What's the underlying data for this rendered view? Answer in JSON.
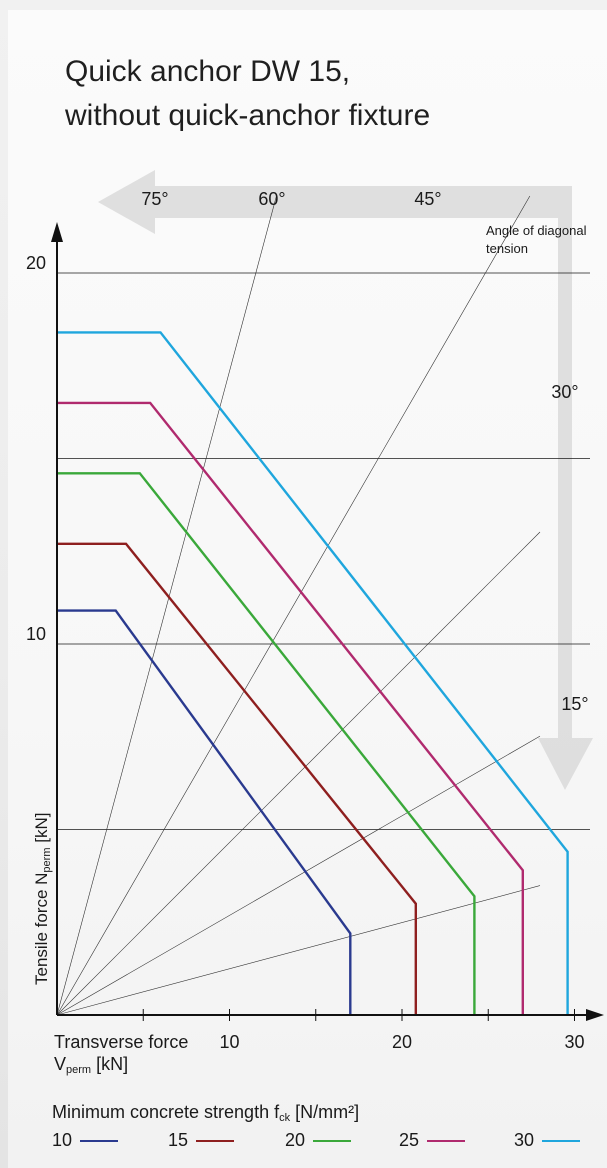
{
  "title_line1": "Quick anchor DW 15,",
  "title_line2": "without quick-anchor fixture",
  "angle_title": "Angle of diagonal tension",
  "y_axis_label_main": "Tensile force N",
  "y_axis_label_sub": "perm",
  "y_axis_label_unit": " [kN]",
  "x_axis_label_line1": "Transverse force",
  "x_axis_label_main": "V",
  "x_axis_label_sub": "perm",
  "x_axis_label_unit": " [kN]",
  "legend_title_main": "Minimum concrete strength f",
  "legend_title_sub": "ck",
  "legend_title_unit": " [N/mm²]",
  "legend": [
    {
      "label": "10",
      "color": "#2a3a8f"
    },
    {
      "label": "15",
      "color": "#8e1f1f"
    },
    {
      "label": "20",
      "color": "#3aa83a"
    },
    {
      "label": "25",
      "color": "#b02a6e"
    },
    {
      "label": "30",
      "color": "#1fa6dd"
    }
  ],
  "chart_data": {
    "type": "line",
    "title": "Quick anchor DW 15, without quick-anchor fixture",
    "xlabel": "Transverse force Vperm [kN]",
    "ylabel": "Tensile force Nperm [kN]",
    "xlim": [
      0,
      30
    ],
    "ylim": [
      0,
      20
    ],
    "x_ticks": [
      10,
      20,
      30
    ],
    "y_ticks": [
      10,
      20
    ],
    "gridlines_y": [
      5,
      10,
      15,
      20
    ],
    "angles": [
      {
        "label": "75°",
        "deg": 75
      },
      {
        "label": "60°",
        "deg": 60
      },
      {
        "label": "45°",
        "deg": 45
      },
      {
        "label": "30°",
        "deg": 30
      },
      {
        "label": "15°",
        "deg": 15
      }
    ],
    "series": [
      {
        "name": "10",
        "color": "#2a3a8f",
        "points": [
          [
            0,
            10.9
          ],
          [
            3.4,
            10.9
          ],
          [
            17,
            2.2
          ],
          [
            17,
            0
          ]
        ]
      },
      {
        "name": "15",
        "color": "#8e1f1f",
        "points": [
          [
            0,
            12.7
          ],
          [
            4,
            12.7
          ],
          [
            20.8,
            3.0
          ],
          [
            20.8,
            0
          ]
        ]
      },
      {
        "name": "20",
        "color": "#3aa83a",
        "points": [
          [
            0,
            14.6
          ],
          [
            4.8,
            14.6
          ],
          [
            24.2,
            3.2
          ],
          [
            24.2,
            0
          ]
        ]
      },
      {
        "name": "25",
        "color": "#b02a6e",
        "points": [
          [
            0,
            16.5
          ],
          [
            5.4,
            16.5
          ],
          [
            27,
            3.9
          ],
          [
            27,
            0
          ]
        ]
      },
      {
        "name": "30",
        "color": "#1fa6dd",
        "points": [
          [
            0,
            18.4
          ],
          [
            6,
            18.4
          ],
          [
            29.6,
            4.4
          ],
          [
            29.6,
            0
          ]
        ]
      }
    ]
  }
}
